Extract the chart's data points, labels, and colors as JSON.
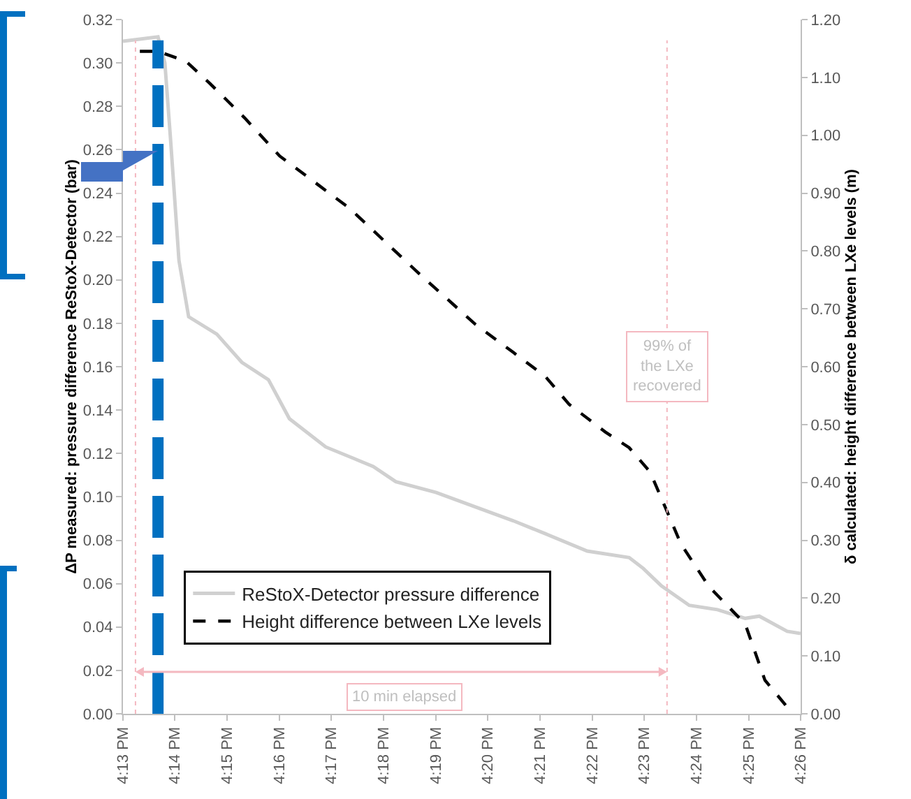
{
  "chart_data": {
    "type": "line",
    "xlabel": null,
    "ylabel": "ΔP measured: pressure difference ReStoX-Detector (bar)",
    "y2label": "δ calculated: height difference between LXe levels (m)",
    "xlim": [
      16.2167,
      16.4333
    ],
    "xticks": [
      {
        "value": 16.2167,
        "label": "4:13 PM"
      },
      {
        "value": 16.2333,
        "label": "4:14 PM"
      },
      {
        "value": 16.25,
        "label": "4:15 PM"
      },
      {
        "value": 16.2667,
        "label": "4:16 PM"
      },
      {
        "value": 16.2833,
        "label": "4:17 PM"
      },
      {
        "value": 16.3,
        "label": "4:18 PM"
      },
      {
        "value": 16.3167,
        "label": "4:19 PM"
      },
      {
        "value": 16.3333,
        "label": "4:20 PM"
      },
      {
        "value": 16.35,
        "label": "4:21 PM"
      },
      {
        "value": 16.3667,
        "label": "4:22 PM"
      },
      {
        "value": 16.3833,
        "label": "4:23 PM"
      },
      {
        "value": 16.4,
        "label": "4:24 PM"
      },
      {
        "value": 16.4167,
        "label": "4:25 PM"
      },
      {
        "value": 16.4333,
        "label": "4:26 PM"
      }
    ],
    "ylim": [
      0,
      0.32
    ],
    "yticks": [
      {
        "value": 0,
        "label": "0.00"
      },
      {
        "value": 0.02,
        "label": "0.02"
      },
      {
        "value": 0.04,
        "label": "0.04"
      },
      {
        "value": 0.06,
        "label": "0.06"
      },
      {
        "value": 0.08,
        "label": "0.08"
      },
      {
        "value": 0.1,
        "label": "0.10"
      },
      {
        "value": 0.12,
        "label": "0.12"
      },
      {
        "value": 0.14,
        "label": "0.14"
      },
      {
        "value": 0.16,
        "label": "0.16"
      },
      {
        "value": 0.18,
        "label": "0.18"
      },
      {
        "value": 0.2,
        "label": "0.20"
      },
      {
        "value": 0.22,
        "label": "0.22"
      },
      {
        "value": 0.24,
        "label": "0.24"
      },
      {
        "value": 0.26,
        "label": "0.26"
      },
      {
        "value": 0.28,
        "label": "0.28"
      },
      {
        "value": 0.3,
        "label": "0.30"
      },
      {
        "value": 0.32,
        "label": "0.32"
      }
    ],
    "y2lim": [
      0,
      1.2
    ],
    "y2ticks": [
      {
        "value": 0,
        "label": "0.00"
      },
      {
        "value": 0.1,
        "label": "0.10"
      },
      {
        "value": 0.2,
        "label": "0.20"
      },
      {
        "value": 0.3,
        "label": "0.30"
      },
      {
        "value": 0.4,
        "label": "0.40"
      },
      {
        "value": 0.5,
        "label": "0.50"
      },
      {
        "value": 0.6,
        "label": "0.60"
      },
      {
        "value": 0.7,
        "label": "0.70"
      },
      {
        "value": 0.8,
        "label": "0.80"
      },
      {
        "value": 0.9,
        "label": "0.90"
      },
      {
        "value": 1.0,
        "label": "1.00"
      },
      {
        "value": 1.1,
        "label": "1.10"
      },
      {
        "value": 1.2,
        "label": "1.20"
      }
    ],
    "grid": false,
    "legend": "bottom",
    "marker": "none",
    "series": [
      {
        "name": "ReStoX-Detector pressure difference",
        "color": "#d0d0d0",
        "line_style": "solid",
        "x": [
          16.2167,
          16.2279,
          16.2301,
          16.2319,
          16.2346,
          16.2377,
          16.2467,
          16.2547,
          16.2632,
          16.2699,
          16.2815,
          16.2967,
          16.3039,
          16.3168,
          16.3262,
          16.3414,
          16.3517,
          16.3651,
          16.3785,
          16.383,
          16.3888,
          16.3977,
          16.4067,
          16.4156,
          16.4201,
          16.429,
          16.4333
        ],
        "values": [
          0.31,
          0.312,
          0.3,
          0.265,
          0.209,
          0.183,
          0.175,
          0.162,
          0.154,
          0.136,
          0.123,
          0.114,
          0.107,
          0.102,
          0.097,
          0.089,
          0.083,
          0.075,
          0.072,
          0.067,
          0.059,
          0.05,
          0.048,
          0.044,
          0.045,
          0.038,
          0.037
        ]
      },
      {
        "name": "Height difference between LXe levels",
        "color": "#000000",
        "line_style": "dashed",
        "axis": "y2",
        "x": [
          16.2221,
          16.2279,
          16.2368,
          16.2444,
          16.2556,
          16.2668,
          16.2891,
          16.3115,
          16.3294,
          16.3414,
          16.3517,
          16.3593,
          16.3709,
          16.3785,
          16.3852,
          16.3951,
          16.404,
          16.4156,
          16.4219,
          16.4308
        ],
        "values": [
          1.145,
          1.145,
          1.128,
          1.09,
          1.03,
          0.964,
          0.874,
          0.76,
          0.673,
          0.625,
          0.583,
          0.535,
          0.487,
          0.46,
          0.418,
          0.293,
          0.22,
          0.155,
          0.058,
          0.0
        ]
      }
    ],
    "ref_lines": [
      {
        "axis": "x",
        "value": 16.2207,
        "color": "#f4b8c0",
        "line_style": "dotted"
      },
      {
        "axis": "x",
        "value": 16.3906,
        "label": "99% of\nthe LXe\nrecovered",
        "color": "#f4b8c0",
        "line_style": "dotted"
      },
      {
        "axis": "x",
        "value": 16.2279,
        "color": "#0070c0",
        "line_style": "dashed"
      }
    ],
    "annotations": [
      "10 min elapsed"
    ]
  }
}
